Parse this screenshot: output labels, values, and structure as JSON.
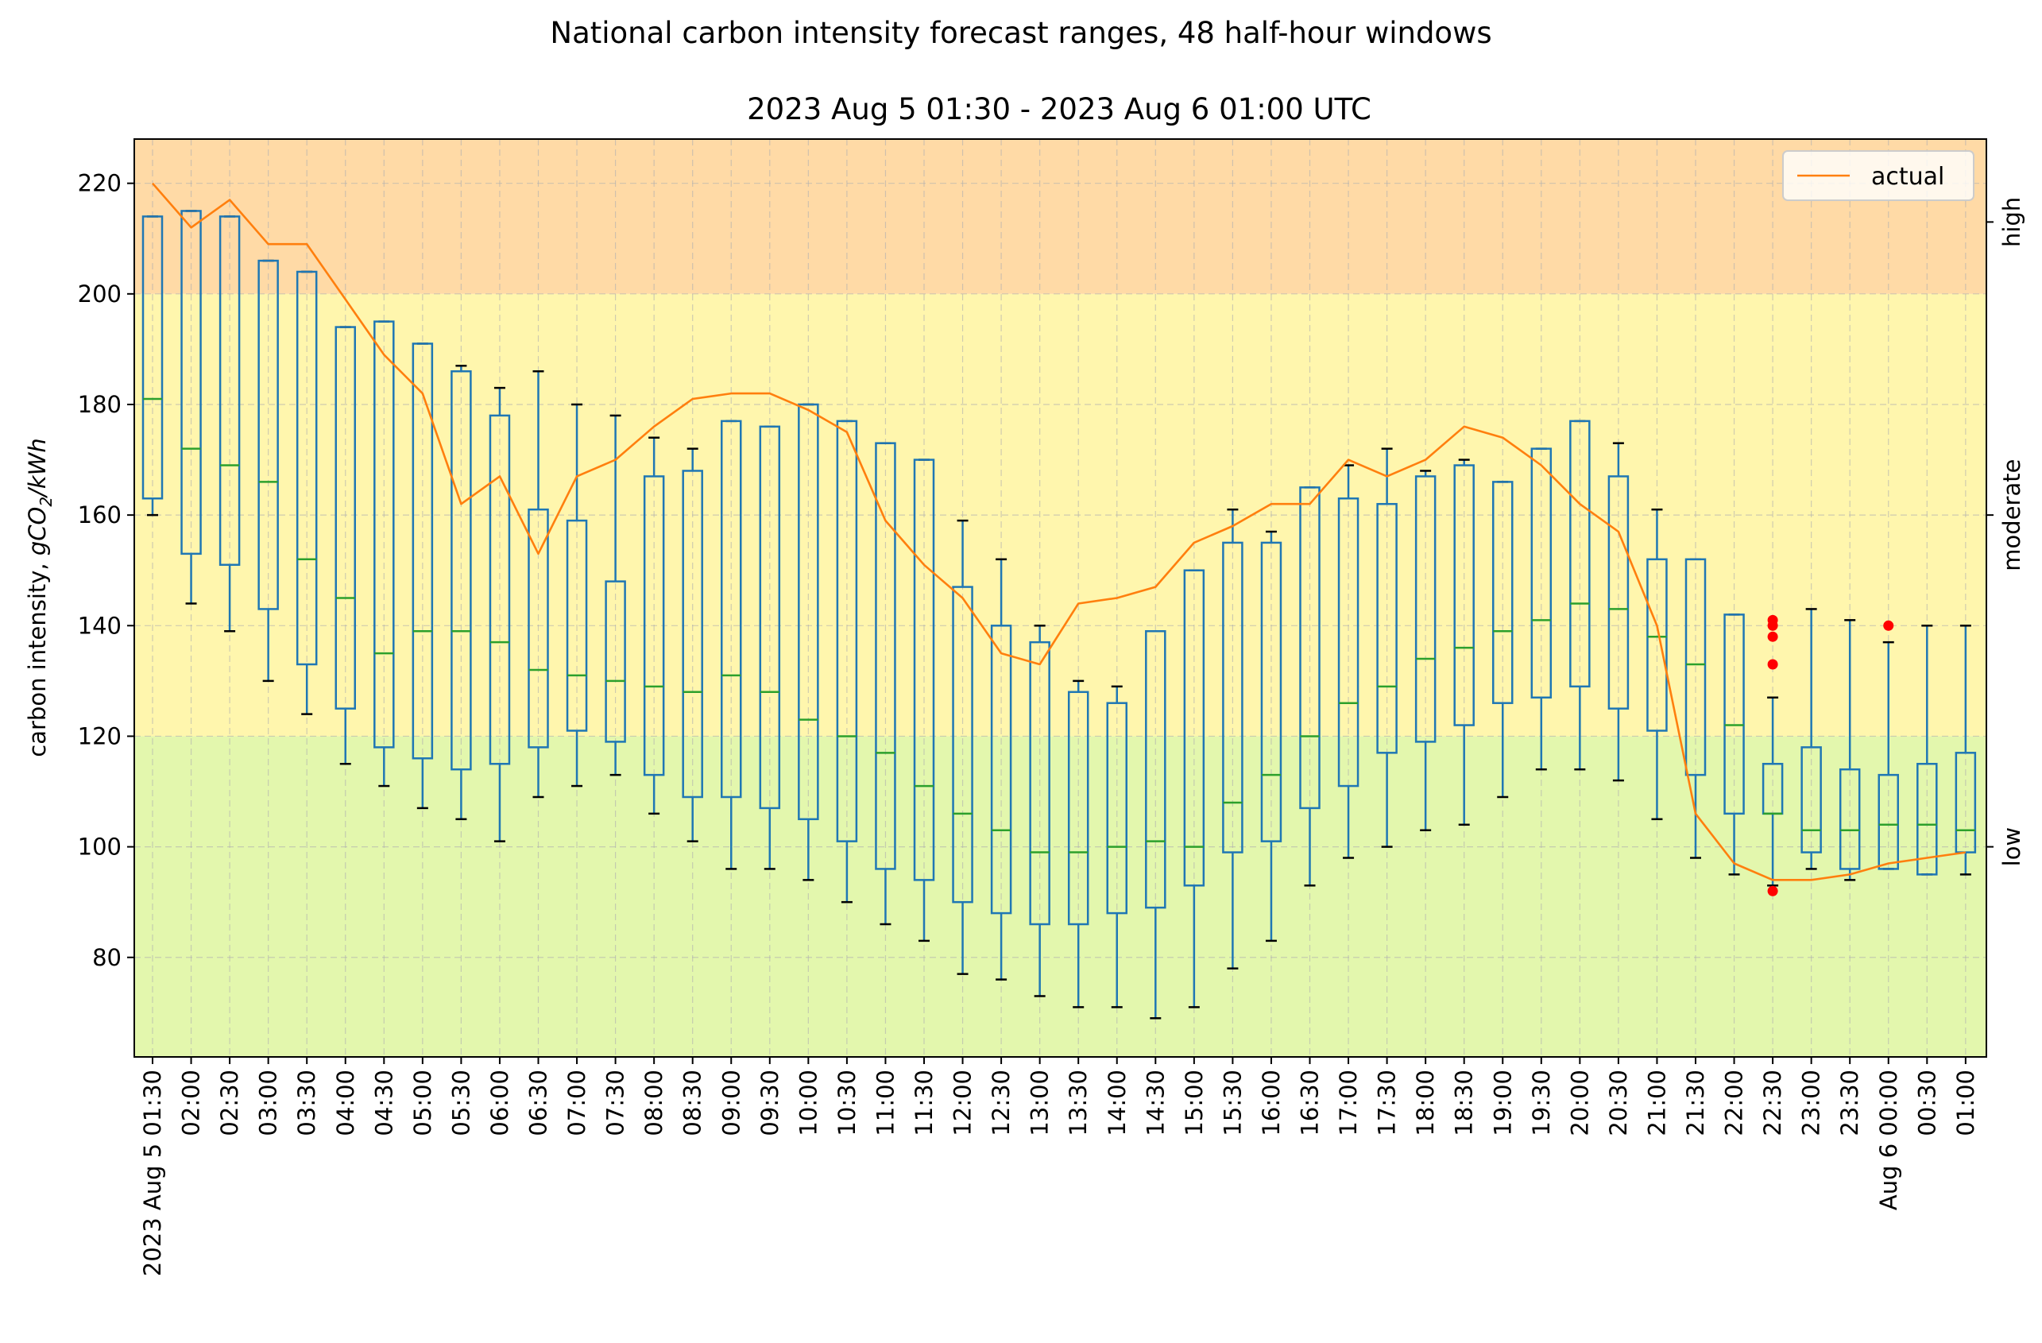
{
  "chart_data": {
    "type": "box",
    "title": "National carbon intensity forecast ranges, 48 half-hour windows",
    "subtitle": "2023 Aug 5 01:30 - 2023 Aug 6 01:00 UTC",
    "ylabel_prefix": "carbon intensity, ",
    "ylabel_unit": "gCO",
    "ylabel_sub": "2",
    "ylabel_suffix": "/kWh",
    "ylim": [
      62,
      228
    ],
    "yticks": [
      80,
      100,
      120,
      140,
      160,
      180,
      200,
      220
    ],
    "grid": true,
    "bands": [
      {
        "label": "low",
        "from": 62,
        "to": 120,
        "color": "#e3f7ad",
        "label_at": 100
      },
      {
        "label": "moderate",
        "from": 120,
        "to": 200,
        "color": "#fff6ad",
        "label_at": 160
      },
      {
        "label": "high",
        "from": 200,
        "to": 228,
        "color": "#ffdaa6",
        "label_at": 213
      }
    ],
    "categories": [
      "2023 Aug 5 01:30",
      "02:00",
      "02:30",
      "03:00",
      "03:30",
      "04:00",
      "04:30",
      "05:00",
      "05:30",
      "06:00",
      "06:30",
      "07:00",
      "07:30",
      "08:00",
      "08:30",
      "09:00",
      "09:30",
      "10:00",
      "10:30",
      "11:00",
      "11:30",
      "12:00",
      "12:30",
      "13:00",
      "13:30",
      "14:00",
      "14:30",
      "15:00",
      "15:30",
      "16:00",
      "16:30",
      "17:00",
      "17:30",
      "18:00",
      "18:30",
      "19:00",
      "19:30",
      "20:00",
      "20:30",
      "21:00",
      "21:30",
      "22:00",
      "22:30",
      "23:00",
      "23:30",
      "Aug 6 00:00",
      "00:30",
      "01:00"
    ],
    "boxes": [
      {
        "whislo": 160,
        "q1": 163,
        "med": 181,
        "q3": 214,
        "whishi": 214
      },
      {
        "whislo": 144,
        "q1": 153,
        "med": 172,
        "q3": 215,
        "whishi": 215
      },
      {
        "whislo": 139,
        "q1": 151,
        "med": 169,
        "q3": 214,
        "whishi": 214
      },
      {
        "whislo": 130,
        "q1": 143,
        "med": 166,
        "q3": 206,
        "whishi": 206
      },
      {
        "whislo": 124,
        "q1": 133,
        "med": 152,
        "q3": 204,
        "whishi": 204
      },
      {
        "whislo": 115,
        "q1": 125,
        "med": 145,
        "q3": 194,
        "whishi": 194
      },
      {
        "whislo": 111,
        "q1": 118,
        "med": 135,
        "q3": 195,
        "whishi": 195
      },
      {
        "whislo": 107,
        "q1": 116,
        "med": 139,
        "q3": 191,
        "whishi": 191
      },
      {
        "whislo": 105,
        "q1": 114,
        "med": 139,
        "q3": 186,
        "whishi": 187
      },
      {
        "whislo": 101,
        "q1": 115,
        "med": 137,
        "q3": 178,
        "whishi": 183
      },
      {
        "whislo": 109,
        "q1": 118,
        "med": 132,
        "q3": 161,
        "whishi": 186
      },
      {
        "whislo": 111,
        "q1": 121,
        "med": 131,
        "q3": 159,
        "whishi": 180
      },
      {
        "whislo": 113,
        "q1": 119,
        "med": 130,
        "q3": 148,
        "whishi": 178
      },
      {
        "whislo": 106,
        "q1": 113,
        "med": 129,
        "q3": 167,
        "whishi": 174
      },
      {
        "whislo": 101,
        "q1": 109,
        "med": 128,
        "q3": 168,
        "whishi": 172
      },
      {
        "whislo": 96,
        "q1": 109,
        "med": 131,
        "q3": 177,
        "whishi": 177
      },
      {
        "whislo": 96,
        "q1": 107,
        "med": 128,
        "q3": 176,
        "whishi": 176
      },
      {
        "whislo": 94,
        "q1": 105,
        "med": 123,
        "q3": 180,
        "whishi": 180
      },
      {
        "whislo": 90,
        "q1": 101,
        "med": 120,
        "q3": 177,
        "whishi": 177
      },
      {
        "whislo": 86,
        "q1": 96,
        "med": 117,
        "q3": 173,
        "whishi": 173
      },
      {
        "whislo": 83,
        "q1": 94,
        "med": 111,
        "q3": 170,
        "whishi": 170
      },
      {
        "whislo": 77,
        "q1": 90,
        "med": 106,
        "q3": 147,
        "whishi": 159
      },
      {
        "whislo": 76,
        "q1": 88,
        "med": 103,
        "q3": 140,
        "whishi": 152
      },
      {
        "whislo": 73,
        "q1": 86,
        "med": 99,
        "q3": 137,
        "whishi": 140
      },
      {
        "whislo": 71,
        "q1": 86,
        "med": 99,
        "q3": 128,
        "whishi": 130
      },
      {
        "whislo": 71,
        "q1": 88,
        "med": 100,
        "q3": 126,
        "whishi": 129
      },
      {
        "whislo": 69,
        "q1": 89,
        "med": 101,
        "q3": 139,
        "whishi": 139
      },
      {
        "whislo": 71,
        "q1": 93,
        "med": 100,
        "q3": 150,
        "whishi": 150
      },
      {
        "whislo": 78,
        "q1": 99,
        "med": 108,
        "q3": 155,
        "whishi": 161
      },
      {
        "whislo": 83,
        "q1": 101,
        "med": 113,
        "q3": 155,
        "whishi": 157
      },
      {
        "whislo": 93,
        "q1": 107,
        "med": 120,
        "q3": 165,
        "whishi": 165
      },
      {
        "whislo": 98,
        "q1": 111,
        "med": 126,
        "q3": 163,
        "whishi": 169
      },
      {
        "whislo": 100,
        "q1": 117,
        "med": 129,
        "q3": 162,
        "whishi": 172
      },
      {
        "whislo": 103,
        "q1": 119,
        "med": 134,
        "q3": 167,
        "whishi": 168
      },
      {
        "whislo": 104,
        "q1": 122,
        "med": 136,
        "q3": 169,
        "whishi": 170
      },
      {
        "whislo": 109,
        "q1": 126,
        "med": 139,
        "q3": 166,
        "whishi": 166
      },
      {
        "whislo": 114,
        "q1": 127,
        "med": 141,
        "q3": 172,
        "whishi": 172
      },
      {
        "whislo": 114,
        "q1": 129,
        "med": 144,
        "q3": 177,
        "whishi": 177
      },
      {
        "whislo": 112,
        "q1": 125,
        "med": 143,
        "q3": 167,
        "whishi": 173
      },
      {
        "whislo": 105,
        "q1": 121,
        "med": 138,
        "q3": 152,
        "whishi": 161
      },
      {
        "whislo": 98,
        "q1": 113,
        "med": 133,
        "q3": 152,
        "whishi": 152
      },
      {
        "whislo": 95,
        "q1": 106,
        "med": 122,
        "q3": 142,
        "whishi": 142
      },
      {
        "whislo": 93,
        "q1": 106,
        "med": 106,
        "q3": 115,
        "whishi": 127,
        "fliers": [
          92,
          133,
          138,
          140,
          141
        ]
      },
      {
        "whislo": 96,
        "q1": 99,
        "med": 103,
        "q3": 118,
        "whishi": 143
      },
      {
        "whislo": 94,
        "q1": 96,
        "med": 103,
        "q3": 114,
        "whishi": 141
      },
      {
        "whislo": 96,
        "q1": 96,
        "med": 104,
        "q3": 113,
        "whishi": 137,
        "fliers": [
          140
        ]
      },
      {
        "whislo": 95,
        "q1": 95,
        "med": 104,
        "q3": 115,
        "whishi": 140
      },
      {
        "whislo": 95,
        "q1": 99,
        "med": 103,
        "q3": 117,
        "whishi": 140
      }
    ],
    "series": [
      {
        "name": "actual",
        "color": "#ff7f0e",
        "values": [
          220,
          212,
          217,
          209,
          209,
          199,
          189,
          182,
          162,
          167,
          153,
          167,
          170,
          176,
          181,
          182,
          182,
          179,
          175,
          159,
          151,
          145,
          135,
          133,
          144,
          145,
          147,
          155,
          158,
          162,
          162,
          170,
          167,
          170,
          176,
          174,
          169,
          162,
          157,
          140,
          106,
          97,
          94,
          94,
          95,
          97,
          98,
          99
        ]
      }
    ],
    "legend": {
      "position": "top-right",
      "entries": [
        "actual"
      ]
    },
    "colors": {
      "box": "#1f77b4",
      "median": "#2ca02c",
      "actual": "#ff7f0e",
      "flier": "#ff0000",
      "grid": "#b0b0b0"
    }
  }
}
